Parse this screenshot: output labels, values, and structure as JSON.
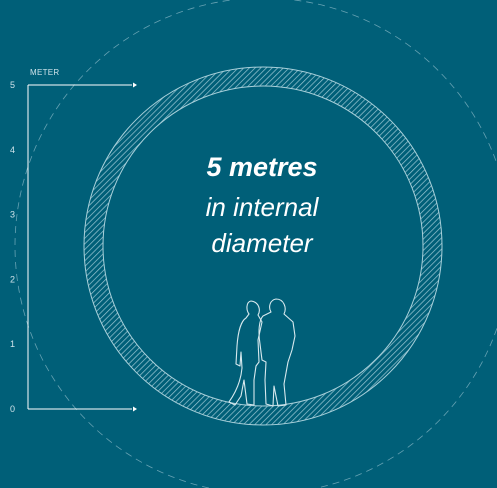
{
  "scale": {
    "unit_label": "METER",
    "ticks": [
      "0",
      "1",
      "2",
      "3",
      "4",
      "5"
    ]
  },
  "headline": {
    "line1": "5 metres",
    "line2": "in internal",
    "line3": "diameter"
  },
  "colors": {
    "background": "#005f78",
    "ring": "#8fbfcd",
    "text": "#ffffff",
    "scale": "#cfe3ea"
  }
}
